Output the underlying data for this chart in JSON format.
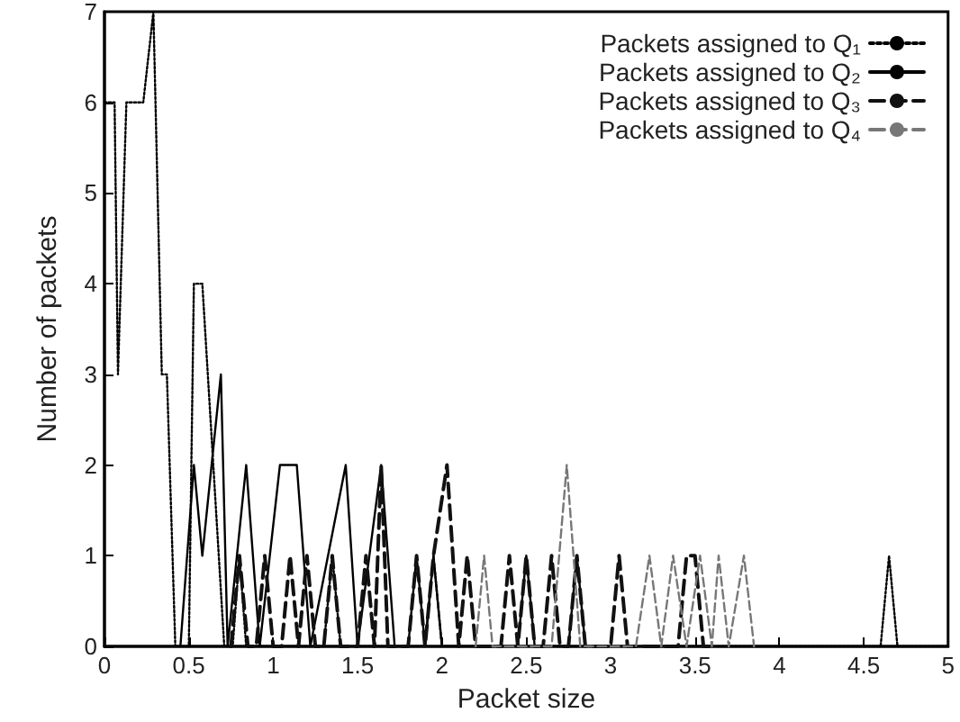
{
  "chart_data": {
    "type": "line",
    "xlabel": "Packet size",
    "ylabel": "Number of packets",
    "xlim": [
      0,
      5
    ],
    "xticks": [
      0,
      0.5,
      1,
      1.5,
      2,
      2.5,
      3,
      3.5,
      4,
      4.5,
      5
    ],
    "ylim": [
      0,
      7
    ],
    "yticks": [
      0,
      1,
      2,
      3,
      4,
      5,
      6,
      7
    ],
    "grid": false,
    "legend": "top right",
    "marker": "none",
    "series": [
      {
        "name": "Packets assigned to Q₁",
        "color": "#000000",
        "line_style": "dotted",
        "x": [
          0,
          0.06,
          0.08,
          0.13,
          0.23,
          0.29,
          0.34,
          0.37,
          0.42,
          0.5,
          0.53,
          0.58,
          0.71,
          0.76,
          0.8,
          0.84,
          1.3,
          1.35,
          1.4,
          1.9,
          1.95,
          2.0,
          4.6,
          4.65,
          4.7,
          5
        ],
        "values": [
          6,
          6,
          3,
          6,
          6,
          7,
          3,
          3,
          0,
          0,
          4,
          4,
          0,
          0,
          1,
          0,
          0,
          1,
          0,
          0,
          1,
          0,
          0,
          1,
          0,
          0
        ]
      },
      {
        "name": "Packets assigned to Q₂",
        "color": "#000000",
        "line_style": "solid",
        "x": [
          0.45,
          0.53,
          0.58,
          0.69,
          0.73,
          0.84,
          0.92,
          1.04,
          1.14,
          1.22,
          1.43,
          1.5,
          1.64,
          1.72,
          1.8,
          1.85,
          1.9,
          1.95,
          2.0,
          2.45,
          2.5,
          2.55,
          2.75,
          2.8,
          2.85
        ],
        "values": [
          0,
          2,
          1,
          3,
          0,
          2,
          0,
          2,
          2,
          0,
          2,
          0,
          2,
          0,
          0,
          1,
          0,
          1,
          0,
          0,
          1,
          0,
          0,
          1,
          0
        ]
      },
      {
        "name": "Packets assigned to Q₃",
        "color": "#111111",
        "line_style": "dashed",
        "x": [
          0.75,
          0.8,
          0.85,
          0.9,
          0.95,
          1.0,
          1.05,
          1.1,
          1.15,
          1.2,
          1.25,
          1.3,
          1.35,
          1.4,
          1.5,
          1.55,
          1.6,
          1.64,
          1.68,
          1.8,
          1.85,
          1.9,
          1.95,
          2.03,
          2.1,
          2.15,
          2.2,
          2.35,
          2.4,
          2.45,
          2.5,
          2.55,
          2.6,
          2.65,
          2.7,
          2.75,
          2.8,
          2.85,
          3.0,
          3.05,
          3.1,
          3.4,
          3.45,
          3.5,
          3.55,
          3.6
        ],
        "values": [
          0,
          1,
          0,
          0,
          1,
          0,
          0,
          1,
          0,
          1,
          0,
          0,
          1,
          0,
          0,
          1,
          0,
          2,
          0,
          0,
          1,
          0,
          1,
          2,
          0,
          1,
          0,
          0,
          1,
          0,
          1,
          0,
          0,
          1,
          0,
          0,
          1,
          0,
          0,
          1,
          0,
          0,
          1,
          1,
          0,
          0
        ]
      },
      {
        "name": "Packets assigned to Q₄",
        "color": "#777777",
        "line_style": "dashed",
        "x": [
          2.2,
          2.25,
          2.3,
          2.65,
          2.74,
          2.82,
          3.15,
          3.23,
          3.3,
          3.37,
          3.45,
          3.53,
          3.6,
          3.64,
          3.7,
          3.79,
          3.85
        ],
        "values": [
          0,
          1,
          0,
          0,
          2,
          0,
          0,
          1,
          0,
          1,
          0,
          1,
          0,
          1,
          0,
          1,
          0
        ]
      }
    ]
  }
}
